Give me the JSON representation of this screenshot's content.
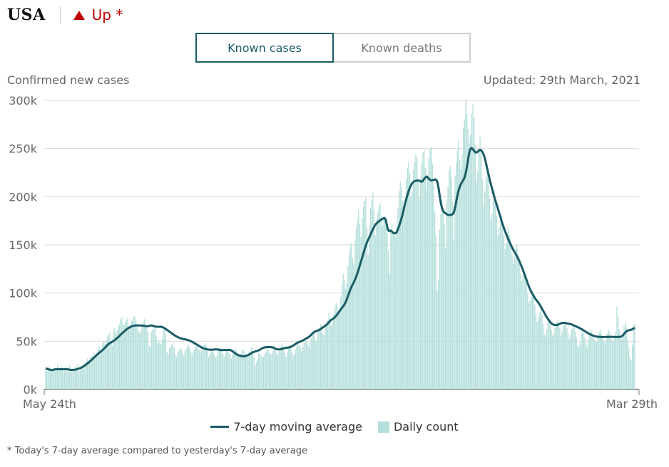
{
  "header": {
    "country": "USA",
    "trend_label": "Up *"
  },
  "tabs": [
    {
      "label": "Known cases",
      "active": true
    },
    {
      "label": "Known deaths",
      "active": false
    }
  ],
  "colors": {
    "accent": "#1a5c66",
    "bars": "#b4dfdb",
    "trend": "#c00000",
    "grid": "#d9d9d9"
  },
  "chart_data": {
    "type": "bar",
    "ylabel": "Confirmed new cases",
    "updated": "Updated: 29th March, 2021",
    "ylim": [
      0,
      300000
    ],
    "yticks": [
      {
        "value": 0,
        "label": "0k"
      },
      {
        "value": 50000,
        "label": "50k"
      },
      {
        "value": 100000,
        "label": "100k"
      },
      {
        "value": 150000,
        "label": "150k"
      },
      {
        "value": 200000,
        "label": "200k"
      },
      {
        "value": 250000,
        "label": "250k"
      },
      {
        "value": 300000,
        "label": "300k"
      }
    ],
    "x_start_label": "May 24th",
    "x_end_label": "Mar 29th",
    "grid": true,
    "legend_position": "bottom",
    "series": [
      {
        "name": "7-day moving average",
        "type": "line",
        "values": [
          22000,
          21500,
          21000,
          20800,
          20500,
          20200,
          20000,
          20300,
          20700,
          21000,
          21000,
          21000,
          21000,
          21000,
          21000,
          21000,
          21000,
          21000,
          21000,
          21000,
          21000,
          20800,
          20500,
          20300,
          20200,
          20200,
          20300,
          20500,
          20700,
          21000,
          21300,
          21700,
          22000,
          22600,
          23300,
          24000,
          24800,
          25500,
          26400,
          27300,
          28200,
          29200,
          30200,
          31300,
          32300,
          33400,
          34400,
          35600,
          36600,
          37500,
          38500,
          39400,
          40400,
          41300,
          42400,
          43600,
          44800,
          46000,
          47000,
          47900,
          48500,
          49200,
          49900,
          50600,
          51400,
          52300,
          53200,
          54300,
          55400,
          56500,
          57600,
          58600,
          59600,
          60600,
          61600,
          62600,
          63300,
          64000,
          64600,
          65200,
          65800,
          66000,
          66200,
          66300,
          66400,
          66400,
          66400,
          66400,
          66300,
          66200,
          66100,
          66000,
          65800,
          65700,
          65600,
          65800,
          66100,
          66300,
          66400,
          66000,
          65700,
          65300,
          65100,
          65000,
          65000,
          65000,
          65000,
          65000,
          64600,
          64000,
          63300,
          62600,
          61800,
          61000,
          60200,
          59400,
          58600,
          57800,
          57000,
          56200,
          55500,
          54900,
          54300,
          53800,
          53300,
          52900,
          52600,
          52300,
          52100,
          51900,
          51700,
          51400,
          51000,
          50600,
          50100,
          49600,
          49000,
          48300,
          47600,
          47000,
          46300,
          45600,
          44900,
          44200,
          43600,
          43000,
          42600,
          42200,
          41900,
          41600,
          41400,
          41300,
          41200,
          41200,
          41300,
          41300,
          41500,
          41700,
          41600,
          41400,
          41200,
          41000,
          40800,
          40800,
          40900,
          41000,
          41000,
          41000,
          41000,
          41000,
          41000,
          40700,
          40000,
          39200,
          38300,
          37400,
          36700,
          36000,
          35500,
          35100,
          34800,
          34500,
          34400,
          34400,
          34400,
          34700,
          35200,
          35700,
          36300,
          37000,
          37700,
          38400,
          38800,
          39200,
          39500,
          39800,
          40200,
          40700,
          41300,
          42000,
          42600,
          43200,
          43500,
          43700,
          43900,
          44000,
          44000,
          44000,
          43900,
          43700,
          43500,
          43000,
          42300,
          41800,
          41600,
          41600,
          41600,
          41700,
          42000,
          42300,
          42700,
          43000,
          43200,
          43300,
          43500,
          43700,
          44000,
          44500,
          45100,
          45800,
          46600,
          47400,
          48100,
          48700,
          49200,
          49600,
          50000,
          50500,
          51100,
          51800,
          52500,
          53100,
          53700,
          54400,
          55400,
          56500,
          57600,
          58600,
          59500,
          60200,
          60700,
          61000,
          61400,
          62000,
          62700,
          63500,
          64300,
          65100,
          65800,
          66700,
          67800,
          69100,
          70300,
          71500,
          72400,
          73000,
          73800,
          74800,
          76000,
          77500,
          79000,
          80500,
          82200,
          83800,
          85200,
          86700,
          88400,
          90500,
          93200,
          96300,
          99500,
          102600,
          105400,
          107800,
          110000,
          112300,
          114900,
          117800,
          121000,
          124500,
          128200,
          132000,
          135700,
          139500,
          143500,
          147100,
          150500,
          153300,
          155700,
          158200,
          160800,
          163300,
          165800,
          168000,
          170000,
          171700,
          172800,
          173800,
          174700,
          175600,
          176300,
          177000,
          177700,
          177700,
          176000,
          171000,
          166000,
          164300,
          164900,
          164600,
          163500,
          162500,
          162000,
          162000,
          163000,
          165300,
          168300,
          171700,
          175200,
          179300,
          183800,
          188600,
          193200,
          197500,
          201500,
          205200,
          208500,
          211000,
          213200,
          214700,
          215700,
          216300,
          216700,
          216800,
          216900,
          216500,
          216000,
          215500,
          216000,
          217700,
          219200,
          220300,
          221000,
          219800,
          218500,
          217500,
          217000,
          217100,
          217400,
          217700,
          218000,
          217000,
          214000,
          208000,
          200000,
          193000,
          188000,
          185300,
          183800,
          183000,
          182200,
          181500,
          181000,
          181000,
          181200,
          181500,
          182000,
          184000,
          188000,
          194000,
          200000,
          205000,
          209000,
          212000,
          214200,
          216000,
          218000,
          220500,
          225000,
          231000,
          238000,
          245000,
          249000,
          250600,
          250000,
          248500,
          247000,
          246000,
          246000,
          246700,
          248000,
          248700,
          248300,
          247000,
          245000,
          242000,
          238000,
          233000,
          228000,
          223000,
          218000,
          213500,
          209500,
          205000,
          201000,
          197000,
          193500,
          190000,
          186000,
          182500,
          179000,
          175000,
          171500,
          168000,
          165000,
          162000,
          159200,
          156500,
          154000,
          151500,
          149000,
          146700,
          144500,
          142500,
          140600,
          138600,
          136600,
          134200,
          131600,
          128900,
          126200,
          123300,
          120200,
          117000,
          113800,
          110600,
          107600,
          104800,
          102300,
          100100,
          98200,
          96300,
          94500,
          92900,
          91500,
          90000,
          88400,
          86500,
          84500,
          82400,
          80400,
          78400,
          76300,
          74400,
          72700,
          71200,
          69800,
          68600,
          67800,
          67200,
          66900,
          66700,
          66800,
          67200,
          67700,
          68200,
          68700,
          68900,
          69100,
          69100,
          68900,
          68700,
          68400,
          68200,
          68000,
          67700,
          67300,
          66800,
          66300,
          65800,
          65300,
          64800,
          64200,
          63700,
          63100,
          62500,
          61800,
          61100,
          60400,
          59700,
          59000,
          58300,
          57700,
          57100,
          56600,
          56100,
          55700,
          55300,
          55000,
          54800,
          54700,
          54600,
          54500,
          54400,
          54400,
          54400,
          54400,
          54500,
          54500,
          54500,
          54600,
          54600,
          54600,
          54500,
          54500,
          54500,
          54400,
          54400,
          54400,
          54500,
          54600,
          54700,
          55100,
          56000,
          57400,
          58900,
          60000,
          60700,
          61200,
          61500,
          61800,
          62100,
          62600,
          63200,
          64000
        ]
      },
      {
        "name": "Daily count",
        "type": "bar",
        "values": [
          21000,
          19000,
          20000,
          24000,
          18000,
          19000,
          20000,
          22000,
          21000,
          20000,
          25000,
          19000,
          22000,
          24000,
          22000,
          18000,
          19000,
          24000,
          21000,
          18000,
          25000,
          20000,
          18000,
          21000,
          23000,
          21000,
          24000,
          26000,
          19000,
          20000,
          25000,
          21000,
          24000,
          28000,
          29000,
          32000,
          30000,
          28000,
          33000,
          35000,
          39000,
          32000,
          36000,
          38000,
          42000,
          45000,
          39000,
          40000,
          48000,
          50000,
          47000,
          51000,
          55000,
          57000,
          59000,
          48000,
          45000,
          61000,
          64000,
          58000,
          61000,
          65000,
          68000,
          73000,
          75000,
          68000,
          67000,
          70000,
          72000,
          74000,
          66000,
          65000,
          72000,
          71000,
          75000,
          76000,
          71000,
          66000,
          60000,
          58000,
          62000,
          65000,
          70000,
          73000,
          67000,
          66000,
          60000,
          45000,
          44000,
          60000,
          62000,
          63000,
          65000,
          55000,
          48000,
          52000,
          48000,
          47000,
          52000,
          62000,
          64000,
          57000,
          39000,
          36000,
          43000,
          44000,
          46000,
          48000,
          43000,
          36000,
          34000,
          39000,
          41000,
          43000,
          42000,
          38000,
          35000,
          40000,
          42000,
          44000,
          46000,
          44000,
          39000,
          36000,
          39000,
          42000,
          45000,
          48000,
          44000,
          41000,
          38000,
          41000,
          43000,
          46000,
          48000,
          46000,
          40000,
          34000,
          37000,
          40000,
          42000,
          39000,
          36000,
          33000,
          35000,
          41000,
          42000,
          44000,
          40000,
          37000,
          34000,
          37000,
          40000,
          42000,
          38000,
          36000,
          32000,
          36000,
          40000,
          43000,
          41000,
          38000,
          35000,
          34000,
          37000,
          40000,
          42000,
          39000,
          37000,
          33000,
          36000,
          38000,
          40000,
          44000,
          40000,
          34000,
          25000,
          28000,
          31000,
          38000,
          37000,
          35000,
          33000,
          34000,
          36000,
          39000,
          43000,
          41000,
          38000,
          36000,
          37000,
          40000,
          46000,
          41000,
          38000,
          36000,
          40000,
          43000,
          45000,
          48000,
          44000,
          38000,
          34000,
          38000,
          43000,
          46000,
          44000,
          39000,
          35000,
          36000,
          41000,
          45000,
          49000,
          46000,
          43000,
          40000,
          44000,
          48000,
          52000,
          50000,
          47000,
          44000,
          48000,
          53000,
          57000,
          60000,
          56000,
          50000,
          54000,
          60000,
          64000,
          68000,
          66000,
          58000,
          56000,
          64000,
          68000,
          72000,
          80000,
          74000,
          66000,
          70000,
          78000,
          84000,
          90000,
          88000,
          80000,
          84000,
          96000,
          108000,
          120000,
          114000,
          104000,
          110000,
          128000,
          140000,
          148000,
          152000,
          136000,
          130000,
          154000,
          168000,
          176000,
          186000,
          172000,
          158000,
          178000,
          190000,
          196000,
          200000,
          168000,
          140000,
          170000,
          188000,
          196000,
          204000,
          186000,
          160000,
          176000,
          184000,
          190000,
          194000,
          180000,
          170000,
          176000,
          180000,
          178000,
          162000,
          144000,
          120000,
          166000,
          172000,
          164000,
          160000,
          158000,
          170000,
          188000,
          206000,
          216000,
          210000,
          196000,
          184000,
          200000,
          218000,
          230000,
          236000,
          224000,
          200000,
          206000,
          228000,
          236000,
          244000,
          240000,
          218000,
          200000,
          220000,
          236000,
          246000,
          248000,
          230000,
          208000,
          220000,
          240000,
          250000,
          252000,
          234000,
          212000,
          184000,
          160000,
          102000,
          114000,
          166000,
          182000,
          196000,
          188000,
          172000,
          146000,
          196000,
          210000,
          228000,
          232000,
          220000,
          196000,
          156000,
          222000,
          236000,
          248000,
          258000,
          238000,
          228000,
          244000,
          272000,
          280000,
          300000,
          286000,
          270000,
          256000,
          264000,
          286000,
          296000,
          282000,
          254000,
          216000,
          226000,
          248000,
          262000,
          244000,
          218000,
          190000,
          206000,
          220000,
          230000,
          218000,
          198000,
          176000,
          182000,
          196000,
          206000,
          198000,
          180000,
          160000,
          168000,
          176000,
          180000,
          174000,
          160000,
          146000,
          152000,
          162000,
          168000,
          160000,
          150000,
          140000,
          130000,
          138000,
          146000,
          150000,
          140000,
          130000,
          120000,
          112000,
          118000,
          124000,
          120000,
          110000,
          100000,
          90000,
          92000,
          96000,
          100000,
          96000,
          88000,
          78000,
          70000,
          74000,
          80000,
          84000,
          78000,
          68000,
          58000,
          55000,
          62000,
          70000,
          74000,
          68000,
          62000,
          56000,
          58000,
          64000,
          70000,
          72000,
          68000,
          64000,
          56000,
          60000,
          66000,
          70000,
          68000,
          64000,
          58000,
          52000,
          56000,
          62000,
          66000,
          64000,
          60000,
          54000,
          46000,
          44000,
          48000,
          58000,
          60000,
          58000,
          54000,
          48000,
          44000,
          52000,
          58000,
          62000,
          60000,
          56000,
          52000,
          48000,
          50000,
          56000,
          60000,
          62000,
          58000,
          54000,
          50000,
          48000,
          52000,
          58000,
          62000,
          60000,
          56000,
          52000,
          50000,
          54000,
          60000,
          86000,
          76000,
          62000,
          56000,
          52000,
          58000,
          66000,
          70000,
          64000,
          52000,
          44000,
          34000,
          30000,
          46000,
          66000,
          68000
        ]
      }
    ]
  },
  "legend": {
    "line_label": "7-day moving average",
    "bar_label": "Daily count"
  },
  "footnote": "* Today's 7-day average compared to yesterday's 7-day average"
}
